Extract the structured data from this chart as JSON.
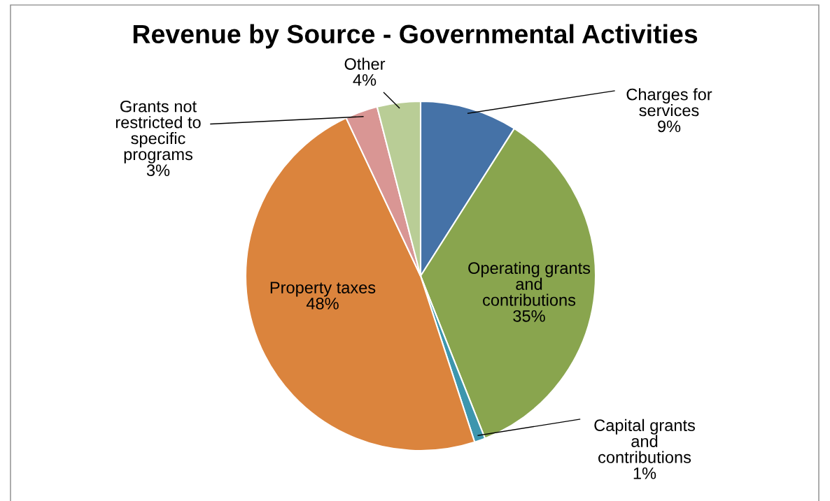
{
  "chart_data": {
    "type": "pie",
    "title": "Revenue by Source - Governmental Activities",
    "categories": [
      "Charges for\nservices",
      "Operating grants\nand\ncontributions",
      "Capital grants\nand\ncontributions",
      "Property taxes",
      "Grants not\nrestricted to\nspecific\nprograms",
      "Other"
    ],
    "values": [
      9,
      35,
      1,
      48,
      3,
      4
    ],
    "colors": [
      "#4572a7",
      "#89a54e",
      "#3d96ae",
      "#db843d",
      "#d99694",
      "#b9cd96"
    ],
    "value_labels": [
      "9%",
      "35%",
      "1%",
      "48%",
      "3%",
      "4%"
    ]
  }
}
